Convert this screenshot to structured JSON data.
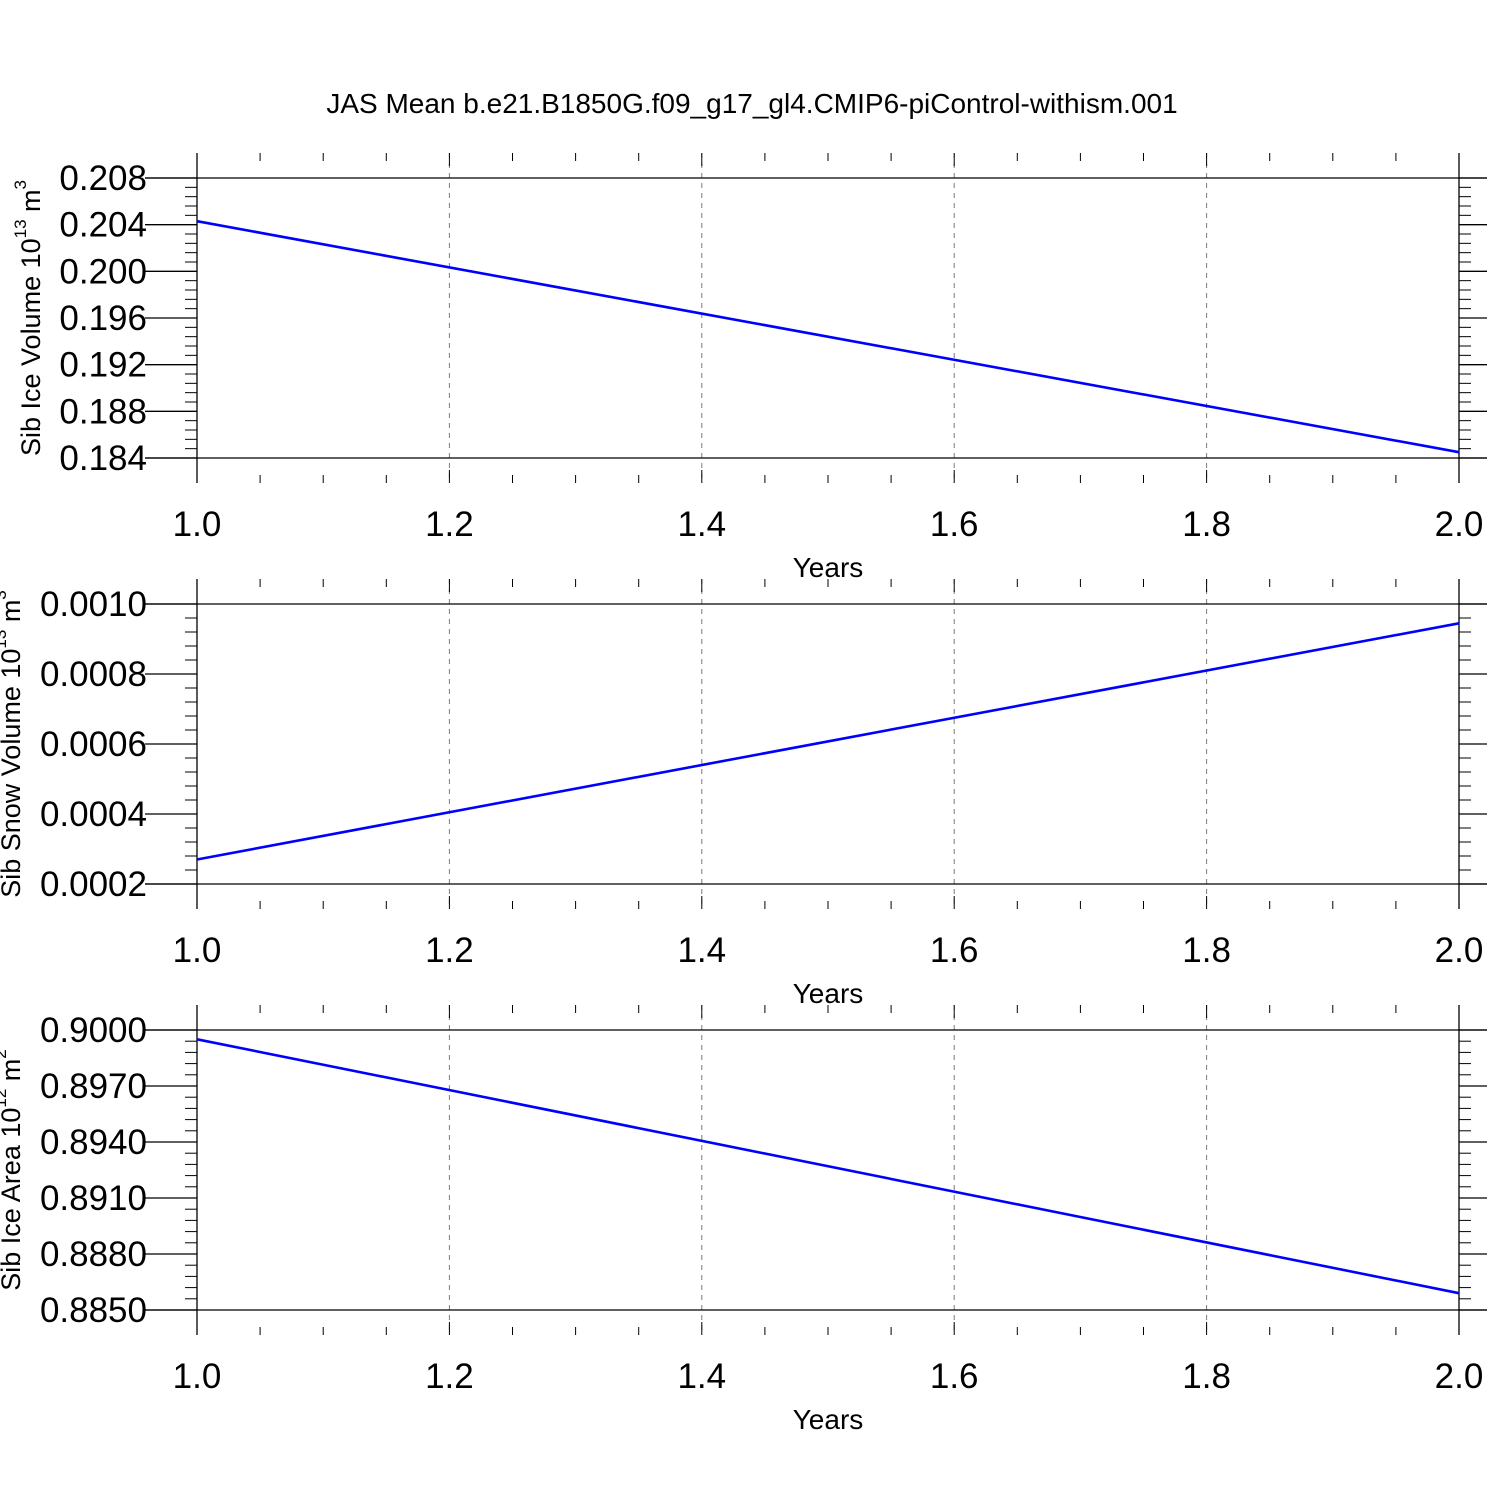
{
  "title": "JAS Mean b.e21.B1850G.f09_g17_gl4.CMIP6-piControl-withism.001",
  "chart_data": [
    {
      "type": "line",
      "xlabel": "Years",
      "ylabel": {
        "text": "Sib Ice Volume 10",
        "exp": "13",
        "unit": " m",
        "unit_exp": "3"
      },
      "xlim": [
        1.0,
        2.0
      ],
      "ylim": [
        0.184,
        0.208
      ],
      "x_ticks": [
        1.0,
        1.2,
        1.4,
        1.6,
        1.8,
        2.0
      ],
      "x_tick_labels": [
        "1.0",
        "1.2",
        "1.4",
        "1.6",
        "1.8",
        "2.0"
      ],
      "y_ticks": [
        0.184,
        0.188,
        0.192,
        0.196,
        0.2,
        0.204,
        0.208
      ],
      "y_tick_labels": [
        "0.184",
        "0.188",
        "0.192",
        "0.196",
        "0.200",
        "0.204",
        "0.208"
      ],
      "grid": "vertical dashed at major x ticks",
      "series": [
        {
          "x": [
            1.0,
            2.0
          ],
          "y": [
            0.2043,
            0.1845
          ],
          "color": "#0000ff"
        }
      ]
    },
    {
      "type": "line",
      "xlabel": "Years",
      "ylabel": {
        "text": "Sib Snow Volume 10",
        "exp": "13",
        "unit": " m",
        "unit_exp": "3"
      },
      "xlim": [
        1.0,
        2.0
      ],
      "ylim": [
        0.0002,
        0.001
      ],
      "x_ticks": [
        1.0,
        1.2,
        1.4,
        1.6,
        1.8,
        2.0
      ],
      "x_tick_labels": [
        "1.0",
        "1.2",
        "1.4",
        "1.6",
        "1.8",
        "2.0"
      ],
      "y_ticks": [
        0.0002,
        0.0004,
        0.0006,
        0.0008,
        0.001
      ],
      "y_tick_labels": [
        "0.0002",
        "0.0004",
        "0.0006",
        "0.0008",
        "0.0010"
      ],
      "grid": "vertical dashed at major x ticks",
      "series": [
        {
          "x": [
            1.0,
            2.0
          ],
          "y": [
            0.00027,
            0.000945
          ],
          "color": "#0000ff"
        }
      ]
    },
    {
      "type": "line",
      "xlabel": "Years",
      "ylabel": {
        "text": "Sib Ice Area 10",
        "exp": "12",
        "unit": " m",
        "unit_exp": "2"
      },
      "xlim": [
        1.0,
        2.0
      ],
      "ylim": [
        0.885,
        0.9
      ],
      "x_ticks": [
        1.0,
        1.2,
        1.4,
        1.6,
        1.8,
        2.0
      ],
      "x_tick_labels": [
        "1.0",
        "1.2",
        "1.4",
        "1.6",
        "1.8",
        "2.0"
      ],
      "y_ticks": [
        0.885,
        0.888,
        0.891,
        0.894,
        0.897,
        0.9
      ],
      "y_tick_labels": [
        "0.8850",
        "0.8880",
        "0.8910",
        "0.8940",
        "0.8970",
        "0.9000"
      ],
      "grid": "vertical dashed at major x ticks",
      "series": [
        {
          "x": [
            1.0,
            2.0
          ],
          "y": [
            0.8995,
            0.8859
          ],
          "color": "#0000ff"
        }
      ]
    }
  ]
}
